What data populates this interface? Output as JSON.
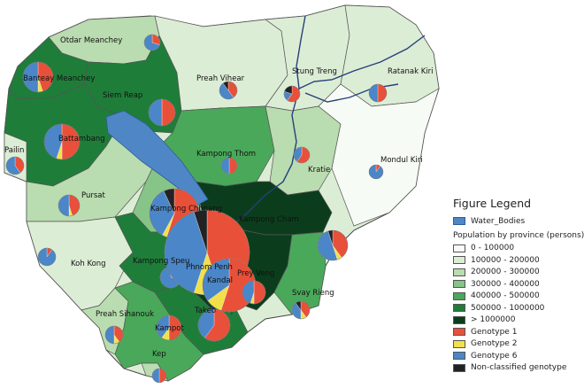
{
  "legend": {
    "title": "Figure Legend",
    "water_label": "Water_Bodies",
    "water_color": "#4f86c6",
    "population_title": "Population by province (persons)",
    "classes": [
      {
        "label": "0 - 100000",
        "color": "#f7fbf5"
      },
      {
        "label": "100000 - 200000",
        "color": "#dcedd5"
      },
      {
        "label": "200000 - 300000",
        "color": "#b9dcb0"
      },
      {
        "label": "300000 - 400000",
        "color": "#86c487"
      },
      {
        "label": "400000 - 500000",
        "color": "#4aa85a"
      },
      {
        "label": "500000 - 1000000",
        "color": "#1f7d3a"
      },
      {
        "label": "> 1000000",
        "color": "#0b3d1c"
      }
    ],
    "genotypes": [
      {
        "label": "Genotype 1",
        "color": "#e8503a"
      },
      {
        "label": "Genotype 2",
        "color": "#f2e04a"
      },
      {
        "label": "Genotype 6",
        "color": "#4a86c8"
      },
      {
        "label": "Non-classified genotype",
        "color": "#222222"
      }
    ]
  },
  "provinces": [
    {
      "name": "Otdar Meanchey",
      "pop_class": 2
    },
    {
      "name": "Banteay Meanchey",
      "pop_class": 5
    },
    {
      "name": "Siem Reap",
      "pop_class": 5
    },
    {
      "name": "Preah Vihear",
      "pop_class": 1
    },
    {
      "name": "Stung Treng",
      "pop_class": 1
    },
    {
      "name": "Ratanak Kiri",
      "pop_class": 1
    },
    {
      "name": "Battambang",
      "pop_class": 5
    },
    {
      "name": "Pailin",
      "pop_class": 1
    },
    {
      "name": "Kampong Thom",
      "pop_class": 4
    },
    {
      "name": "Kratie",
      "pop_class": 2
    },
    {
      "name": "Mondul Kiri",
      "pop_class": 0
    },
    {
      "name": "Pursat",
      "pop_class": 2
    },
    {
      "name": "Kampong Chhnang",
      "pop_class": 3
    },
    {
      "name": "Kampong Cham",
      "pop_class": 6
    },
    {
      "name": "Koh Kong",
      "pop_class": 1
    },
    {
      "name": "Kampong Speu",
      "pop_class": 5
    },
    {
      "name": "Phnom Penh",
      "pop_class": 6
    },
    {
      "name": "Kandal",
      "pop_class": 6
    },
    {
      "name": "Prey Veng",
      "pop_class": 6
    },
    {
      "name": "Svay Rieng",
      "pop_class": 4
    },
    {
      "name": "Takeo",
      "pop_class": 5
    },
    {
      "name": "Preah Sihanouk",
      "pop_class": 2
    },
    {
      "name": "Kampot",
      "pop_class": 4
    },
    {
      "name": "Kep",
      "pop_class": 2
    }
  ],
  "pies": [
    {
      "province": "Otdar Meanchey",
      "shares": [
        0.3,
        0,
        0.7,
        0
      ]
    },
    {
      "province": "Banteay Meanchey",
      "shares": [
        0.45,
        0.05,
        0.5,
        0
      ]
    },
    {
      "province": "Siem Reap",
      "shares": [
        0.5,
        0,
        0.5,
        0
      ]
    },
    {
      "province": "Preah Vihear",
      "shares": [
        0.4,
        0,
        0.5,
        0.1
      ]
    },
    {
      "province": "Stung Treng",
      "shares": [
        0.6,
        0,
        0.2,
        0.2
      ]
    },
    {
      "province": "Ratanak Kiri",
      "shares": [
        0.5,
        0,
        0.5,
        0
      ]
    },
    {
      "province": "Battambang",
      "shares": [
        0.5,
        0.05,
        0.45,
        0
      ]
    },
    {
      "province": "Pailin",
      "shares": [
        0.4,
        0,
        0.6,
        0
      ]
    },
    {
      "province": "Kampong Thom",
      "shares": [
        0.5,
        0,
        0.5,
        0
      ]
    },
    {
      "province": "Kratie",
      "shares": [
        0.6,
        0,
        0.4,
        0
      ]
    },
    {
      "province": "Mondul Kiri",
      "shares": [
        0.1,
        0,
        0.9,
        0
      ]
    },
    {
      "province": "Pursat",
      "shares": [
        0.45,
        0.05,
        0.5,
        0
      ]
    },
    {
      "province": "Kampong Chhnang",
      "shares": [
        0.55,
        0.03,
        0.35,
        0.07
      ]
    },
    {
      "province": "Kampong Cham",
      "shares": [
        0.4,
        0.05,
        0.5,
        0.05
      ]
    },
    {
      "province": "Koh Kong",
      "shares": [
        0.1,
        0,
        0.9,
        0
      ]
    },
    {
      "province": "Kampong Speu",
      "shares": [
        0.3,
        0,
        0.7,
        0
      ]
    },
    {
      "province": "Phnom Penh",
      "shares": [
        0.45,
        0.1,
        0.4,
        0.05
      ]
    },
    {
      "province": "Kandal",
      "shares": [
        0.55,
        0.1,
        0.35,
        0
      ]
    },
    {
      "province": "Prey Veng",
      "shares": [
        0.5,
        0.05,
        0.45,
        0
      ]
    },
    {
      "province": "Svay Rieng",
      "shares": [
        0.4,
        0.1,
        0.4,
        0.1
      ]
    },
    {
      "province": "Takeo",
      "shares": [
        0.6,
        0,
        0.4,
        0
      ]
    },
    {
      "province": "Preah Sihanouk",
      "shares": [
        0.4,
        0.1,
        0.5,
        0
      ]
    },
    {
      "province": "Kampot",
      "shares": [
        0.5,
        0.1,
        0.4,
        0
      ]
    },
    {
      "province": "Kep",
      "shares": [
        0.5,
        0,
        0.5,
        0
      ]
    }
  ]
}
